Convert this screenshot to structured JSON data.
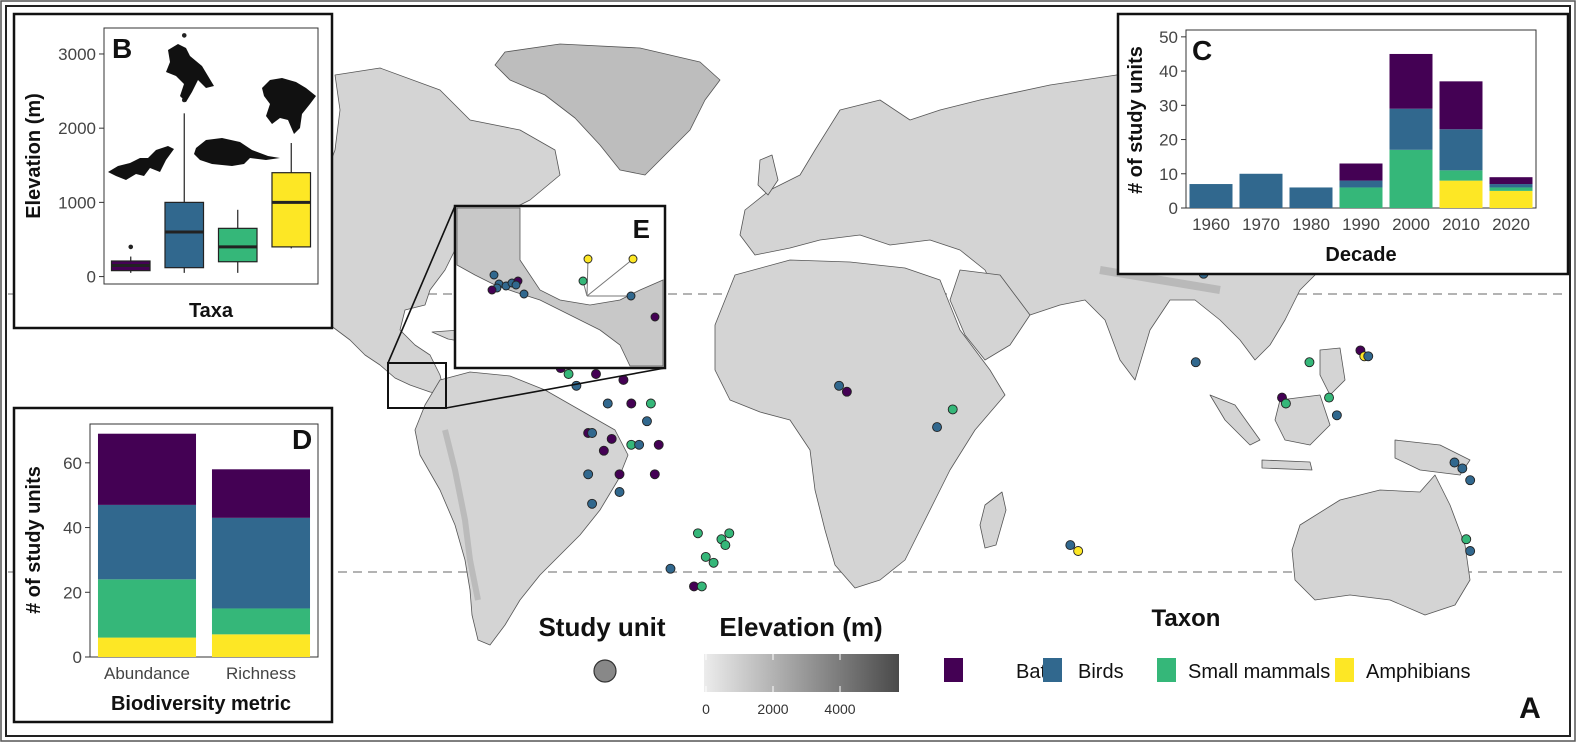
{
  "panel_labels": {
    "main": "A",
    "box": "B",
    "decade": "C",
    "metric": "D",
    "inset": "E"
  },
  "colors": {
    "Bats": "#440154",
    "Birds": "#31688E",
    "Small mammals": "#35B779",
    "Amphibians": "#FDE725",
    "land": "#d4d4d4",
    "border": "#555555"
  },
  "legend": {
    "study_unit_title": "Study unit",
    "elevation_title": "Elevation (m)",
    "elevation_ticks": [
      "0",
      "2000",
      "4000"
    ],
    "taxon_title": "Taxon",
    "taxa": [
      "Bats",
      "Birds",
      "Small mammals",
      "Amphibians"
    ]
  },
  "chart_data": [
    {
      "id": "B",
      "type": "box",
      "ylabel": "Elevation (m)",
      "xlabel": "Taxa",
      "yticks": [
        "0",
        "1000",
        "2000",
        "3000"
      ],
      "ylim": [
        -100,
        3350
      ],
      "groups": [
        {
          "name": "Bats",
          "min": 50,
          "q1": 80,
          "median": 150,
          "q3": 210,
          "max": 270,
          "outliers": [
            400
          ]
        },
        {
          "name": "Birds",
          "min": 50,
          "q1": 120,
          "median": 600,
          "q3": 1000,
          "max": 2200,
          "outliers": [
            2380,
            2450,
            3250
          ]
        },
        {
          "name": "Small mammals",
          "min": 50,
          "q1": 200,
          "median": 400,
          "q3": 650,
          "max": 900,
          "outliers": []
        },
        {
          "name": "Amphibians",
          "min": 380,
          "q1": 400,
          "median": 1000,
          "q3": 1400,
          "max": 1800,
          "outliers": []
        }
      ]
    },
    {
      "id": "C",
      "type": "stacked-bar",
      "ylabel": "# of study units",
      "xlabel": "Decade",
      "categories": [
        "1960",
        "1970",
        "1980",
        "1990",
        "2000",
        "2010",
        "2020"
      ],
      "yticks": [
        "0",
        "10",
        "20",
        "30",
        "40",
        "50"
      ],
      "ylim": [
        0,
        52
      ],
      "series": [
        {
          "name": "Amphibians",
          "values": [
            0,
            0,
            0,
            0,
            0,
            8,
            5
          ]
        },
        {
          "name": "Small mammals",
          "values": [
            0,
            0,
            0,
            6,
            17,
            3,
            1
          ]
        },
        {
          "name": "Birds",
          "values": [
            7,
            10,
            6,
            2,
            12,
            12,
            1
          ]
        },
        {
          "name": "Bats",
          "values": [
            0,
            0,
            0,
            5,
            16,
            14,
            2
          ]
        }
      ]
    },
    {
      "id": "D",
      "type": "stacked-bar",
      "ylabel": "# of study units",
      "xlabel": "Biodiversity metric",
      "categories": [
        "Abundance",
        "Richness"
      ],
      "yticks": [
        "0",
        "20",
        "40",
        "60"
      ],
      "ylim": [
        0,
        72
      ],
      "series": [
        {
          "name": "Amphibians",
          "values": [
            6,
            7
          ]
        },
        {
          "name": "Small mammals",
          "values": [
            18,
            8
          ]
        },
        {
          "name": "Birds",
          "values": [
            23,
            28
          ]
        },
        {
          "name": "Bats",
          "values": [
            22,
            15
          ]
        }
      ]
    },
    {
      "id": "A",
      "type": "scatter",
      "points": [
        {
          "lon": -102,
          "lat": 22,
          "taxon": "Bats"
        },
        {
          "lon": -99,
          "lat": 22,
          "taxon": "Bats"
        },
        {
          "lon": -104,
          "lat": 18,
          "taxon": "Birds"
        },
        {
          "lon": -85,
          "lat": 12,
          "taxon": "Birds"
        },
        {
          "lon": -84,
          "lat": 11,
          "taxon": "Bats"
        },
        {
          "lon": -82,
          "lat": 10,
          "taxon": "Small mammals"
        },
        {
          "lon": -80,
          "lat": 8,
          "taxon": "Birds"
        },
        {
          "lon": -75,
          "lat": 10,
          "taxon": "Bats"
        },
        {
          "lon": -68,
          "lat": 9,
          "taxon": "Bats"
        },
        {
          "lon": -72,
          "lat": 5,
          "taxon": "Birds"
        },
        {
          "lon": -66,
          "lat": 5,
          "taxon": "Bats"
        },
        {
          "lon": -61,
          "lat": 5,
          "taxon": "Small mammals"
        },
        {
          "lon": -62,
          "lat": 2,
          "taxon": "Birds"
        },
        {
          "lon": -77,
          "lat": 0,
          "taxon": "Bats"
        },
        {
          "lon": -76,
          "lat": 0,
          "taxon": "Birds"
        },
        {
          "lon": -71,
          "lat": -1,
          "taxon": "Bats"
        },
        {
          "lon": -66,
          "lat": -2,
          "taxon": "Small mammals"
        },
        {
          "lon": -64,
          "lat": -2,
          "taxon": "Birds"
        },
        {
          "lon": -59,
          "lat": -2,
          "taxon": "Bats"
        },
        {
          "lon": -73,
          "lat": -3,
          "taxon": "Bats"
        },
        {
          "lon": -77,
          "lat": -7,
          "taxon": "Birds"
        },
        {
          "lon": -69,
          "lat": -7,
          "taxon": "Bats"
        },
        {
          "lon": -60,
          "lat": -7,
          "taxon": "Bats"
        },
        {
          "lon": -69,
          "lat": -10,
          "taxon": "Birds"
        },
        {
          "lon": -76,
          "lat": -12,
          "taxon": "Birds"
        },
        {
          "lon": -49,
          "lat": -17,
          "taxon": "Small mammals"
        },
        {
          "lon": -41,
          "lat": -17,
          "taxon": "Small mammals"
        },
        {
          "lon": -43,
          "lat": -18,
          "taxon": "Small mammals"
        },
        {
          "lon": -42,
          "lat": -19,
          "taxon": "Small mammals"
        },
        {
          "lon": -47,
          "lat": -21,
          "taxon": "Small mammals"
        },
        {
          "lon": -45,
          "lat": -22,
          "taxon": "Small mammals"
        },
        {
          "lon": -56,
          "lat": -23,
          "taxon": "Birds"
        },
        {
          "lon": -50,
          "lat": -26,
          "taxon": "Bats"
        },
        {
          "lon": -48,
          "lat": -26,
          "taxon": "Small mammals"
        },
        {
          "lon": -13,
          "lat": 8,
          "taxon": "Birds"
        },
        {
          "lon": -11,
          "lat": 7,
          "taxon": "Bats"
        },
        {
          "lon": 12,
          "lat": 1,
          "taxon": "Birds"
        },
        {
          "lon": 16,
          "lat": 4,
          "taxon": "Small mammals"
        },
        {
          "lon": 46,
          "lat": -19,
          "taxon": "Birds"
        },
        {
          "lon": 48,
          "lat": -20,
          "taxon": "Amphibians"
        },
        {
          "lon": 80,
          "lat": 27,
          "taxon": "Birds"
        },
        {
          "lon": 78,
          "lat": 12,
          "taxon": "Birds"
        },
        {
          "lon": 100,
          "lat": 6,
          "taxon": "Bats"
        },
        {
          "lon": 101,
          "lat": 5,
          "taxon": "Small mammals"
        },
        {
          "lon": 107,
          "lat": 12,
          "taxon": "Small mammals"
        },
        {
          "lon": 112,
          "lat": 6,
          "taxon": "Small mammals"
        },
        {
          "lon": 114,
          "lat": 3,
          "taxon": "Birds"
        },
        {
          "lon": 120,
          "lat": 14,
          "taxon": "Bats"
        },
        {
          "lon": 121,
          "lat": 13,
          "taxon": "Amphibians"
        },
        {
          "lon": 122,
          "lat": 13,
          "taxon": "Birds"
        },
        {
          "lon": 144,
          "lat": -5,
          "taxon": "Birds"
        },
        {
          "lon": 146,
          "lat": -6,
          "taxon": "Birds"
        },
        {
          "lon": 148,
          "lat": -8,
          "taxon": "Birds"
        },
        {
          "lon": 147,
          "lat": -18,
          "taxon": "Small mammals"
        },
        {
          "lon": 148,
          "lat": -20,
          "taxon": "Birds"
        }
      ]
    }
  ]
}
